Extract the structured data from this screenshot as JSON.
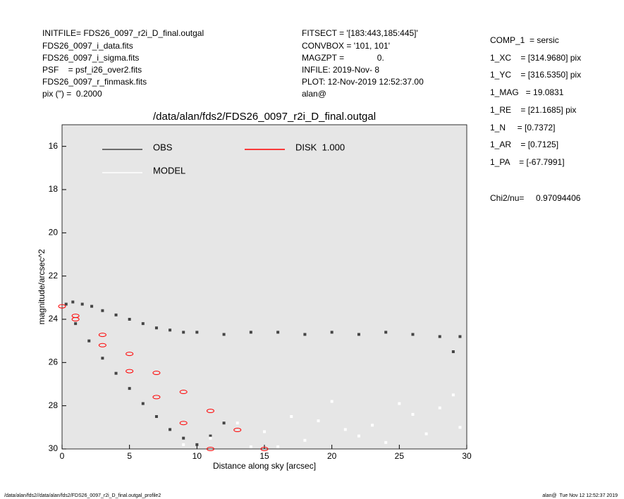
{
  "header": {
    "left": [
      "INITFILE= FDS26_0097_r2i_D_final.outgal",
      "FDS26_0097_i_data.fits",
      "FDS26_0097_i_sigma.fits",
      "PSF    = psf_i26_over2.fits",
      "FDS26_0097_r_finmask.fits",
      "pix (\") =  0.2000"
    ],
    "middle": [
      "FITSECT = '[183:443,185:445]'",
      "CONVBOX = '101, 101'",
      "MAGZPT =              0.",
      "INFILE: 2019-Nov- 8",
      "PLOT: 12-Nov-2019 12:52:37.00",
      "alan@"
    ],
    "right": [
      "COMP_1  = sersic",
      "1_XC    = [314.9680] pix",
      "1_YC    = [316.5350] pix",
      "1_MAG   = 19.0831",
      "1_RE    = [21.1685] pix",
      "1_N     = [0.7372]",
      "1_AR    = [0.7125]",
      "1_PA    = [-67.7991]"
    ],
    "fit": "Chi2/nu=     0.97094406"
  },
  "footer": {
    "left": "/data/alan/fds2//data/alan/fds2/FDS26_0097_r2i_D_final.outgal_profile2",
    "right": "alan@  Tue Nov 12 12:52:37 2019"
  },
  "chart_data": {
    "type": "scatter",
    "title": "/data/alan/fds2/FDS26_0097_r2i_D_final.outgal",
    "xlabel": "Distance along sky [arcsec]",
    "ylabel": "magnitude/arcsec^2",
    "xlim": [
      0,
      30
    ],
    "ylim": [
      15,
      30
    ],
    "y_inverted": true,
    "background": "#e6e6e6",
    "xticks": [
      0,
      5,
      10,
      15,
      20,
      25,
      30
    ],
    "yticks": [
      16,
      18,
      20,
      22,
      24,
      26,
      28,
      30
    ],
    "legend": "upper left",
    "series": [
      {
        "name": "OBS",
        "color": "#444444",
        "x": [
          0.3,
          0.8,
          1.5,
          2.2,
          3,
          4,
          5,
          6,
          7,
          8,
          9,
          10,
          12,
          14,
          16,
          18,
          20,
          22,
          24,
          26,
          28,
          29,
          29.5,
          1,
          2,
          3,
          4,
          5,
          6,
          7,
          8,
          9,
          10,
          11,
          12
        ],
        "y": [
          23.3,
          23.2,
          23.3,
          23.4,
          23.6,
          23.8,
          24.0,
          24.2,
          24.4,
          24.5,
          24.6,
          24.6,
          24.7,
          24.6,
          24.6,
          24.7,
          24.6,
          24.7,
          24.6,
          24.7,
          24.8,
          25.5,
          24.8,
          24.2,
          25.0,
          25.8,
          26.5,
          27.2,
          27.9,
          28.5,
          29.1,
          29.5,
          29.8,
          29.4,
          28.8
        ]
      },
      {
        "name": "MODEL",
        "color": "#ffffff",
        "x": [
          9,
          11,
          13,
          14,
          15,
          17,
          18,
          20,
          21,
          23,
          24,
          25,
          26,
          27,
          28,
          29,
          29.5,
          16,
          19,
          22
        ],
        "y": [
          29.8,
          29.5,
          28.8,
          29.9,
          29.2,
          28.5,
          29.6,
          27.8,
          29.1,
          28.9,
          29.7,
          27.9,
          28.4,
          29.3,
          28.1,
          27.5,
          29.0,
          29.9,
          28.7,
          29.4
        ]
      },
      {
        "name": "DISK  1.000",
        "color": "#ff0000",
        "x": [
          0,
          1,
          3,
          5,
          7,
          9,
          11,
          13,
          15,
          1,
          3,
          5,
          7,
          9,
          11
        ],
        "y": [
          23.4,
          23.84,
          24.72,
          25.6,
          26.48,
          27.36,
          28.24,
          29.12,
          30,
          24.0,
          25.2,
          26.4,
          27.6,
          28.8,
          30.0
        ]
      }
    ]
  }
}
